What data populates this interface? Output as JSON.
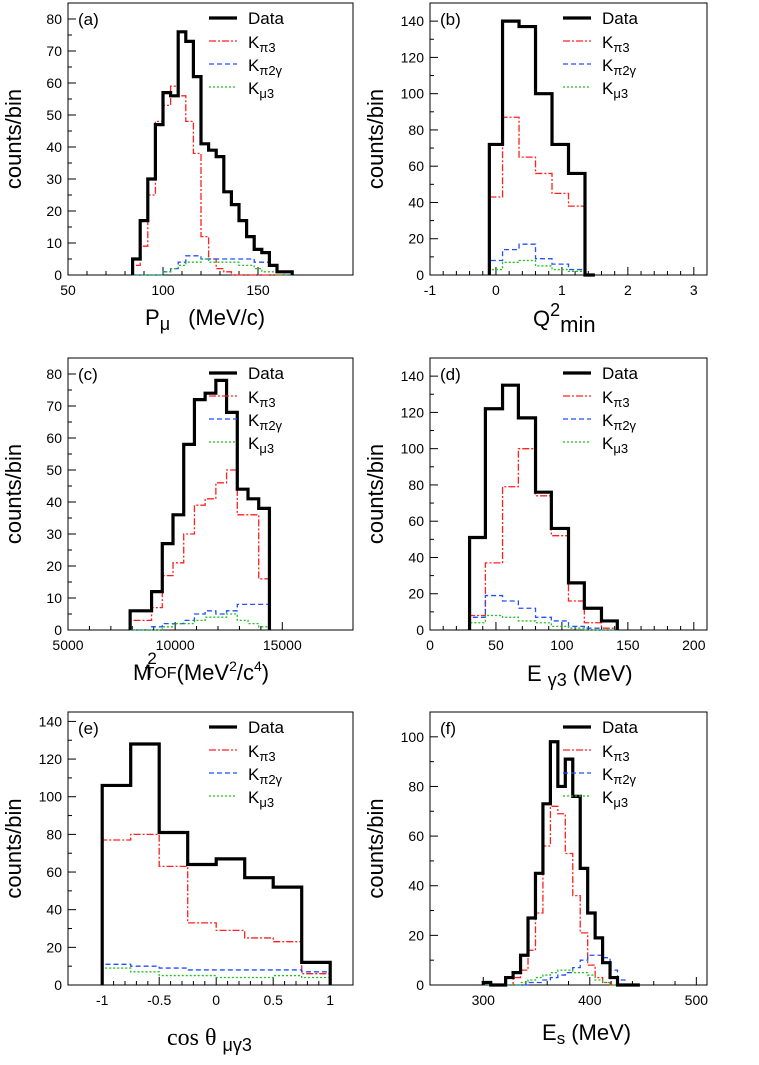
{
  "legend_labels": {
    "data": "Data",
    "kpi3": [
      "K",
      "π3"
    ],
    "kpi2g": [
      "K",
      "π2γ"
    ],
    "kmu3": [
      "K",
      "μ3"
    ]
  },
  "colors": {
    "data": "#000000",
    "kpi3": "#ff2020",
    "kpi2g": "#2050ff",
    "kmu3": "#20c020"
  },
  "chart_data": [
    {
      "type": "line",
      "panel_label": "(a)",
      "xlabel": "Pμ   (MeV/c)",
      "xlabel_parts": [
        "P",
        "μ",
        "(MeV/c)"
      ],
      "ylabel": "counts/bin",
      "xlim": [
        50,
        200
      ],
      "ylim": [
        0,
        85
      ],
      "xticks": [
        50,
        100,
        150
      ],
      "xtick_labels": [
        "50",
        "100",
        "150"
      ],
      "yticks": [
        0,
        10,
        20,
        30,
        40,
        50,
        60,
        70,
        80
      ],
      "ytick_labels": [
        "0",
        "10",
        "20",
        "30",
        "40",
        "50",
        "60",
        "70",
        "80"
      ],
      "legend": "top-right",
      "edges": [
        84,
        88,
        92,
        96,
        100,
        104,
        108,
        112,
        116,
        120,
        124,
        128,
        132,
        136,
        140,
        144,
        148,
        152,
        156,
        160,
        164,
        168
      ],
      "series": [
        {
          "name": "Data",
          "values": [
            5,
            17,
            30,
            47,
            57,
            56,
            76,
            73,
            62,
            41,
            39,
            37,
            26,
            22,
            17,
            12,
            8,
            7,
            3,
            1,
            1
          ]
        },
        {
          "name": "Kπ3",
          "values": [
            3,
            9,
            25,
            48,
            53,
            59,
            56,
            48,
            38,
            12,
            5,
            2,
            1,
            0,
            0,
            0,
            0,
            0,
            0,
            0,
            0
          ]
        },
        {
          "name": "Kπ2γ",
          "values": [
            0,
            0,
            0,
            0,
            1,
            2,
            4,
            6,
            6,
            5,
            5,
            5,
            5,
            5,
            5,
            5,
            4,
            4,
            3,
            1,
            0
          ]
        },
        {
          "name": "Kμ3",
          "values": [
            0,
            0,
            0,
            0,
            1,
            2,
            3,
            4,
            4,
            5,
            4,
            4,
            4,
            4,
            3,
            3,
            2,
            1,
            1,
            0,
            0
          ]
        }
      ]
    },
    {
      "type": "line",
      "panel_label": "(b)",
      "xlabel": "Q2min",
      "xlabel_parts": [
        "Q",
        "2",
        "min"
      ],
      "ylabel": "counts/bin",
      "xlim": [
        -1,
        3.2
      ],
      "ylim": [
        0,
        150
      ],
      "xticks": [
        -1,
        0,
        1,
        2,
        3
      ],
      "xtick_labels": [
        "-1",
        "0",
        "1",
        "2",
        "3"
      ],
      "yticks": [
        0,
        20,
        40,
        60,
        80,
        100,
        120,
        140
      ],
      "ytick_labels": [
        "0",
        "20",
        "40",
        "60",
        "80",
        "100",
        "120",
        "140"
      ],
      "legend": "top-right",
      "edges": [
        -0.1,
        0.1,
        0.35,
        0.6,
        0.85,
        1.1,
        1.35,
        1.5
      ],
      "series": [
        {
          "name": "Data",
          "values": [
            72,
            140,
            137,
            100,
            72,
            56,
            0
          ]
        },
        {
          "name": "Kπ3",
          "values": [
            43,
            87,
            65,
            56,
            45,
            38,
            0
          ]
        },
        {
          "name": "Kπ2γ",
          "values": [
            8,
            14,
            17,
            9,
            6,
            3,
            0
          ]
        },
        {
          "name": "Kμ3",
          "values": [
            3,
            7,
            8,
            5,
            3,
            2,
            0
          ]
        }
      ]
    },
    {
      "type": "line",
      "panel_label": "(c)",
      "xlabel": "M²TOF (MeV²/c⁴)",
      "xlabel_parts": [
        "M",
        "2",
        "TOF",
        "(MeV",
        "2",
        "/c",
        "4",
        ")"
      ],
      "ylabel": "counts/bin",
      "xlim": [
        5000,
        18300
      ],
      "ylim": [
        0,
        85
      ],
      "xticks": [
        5000,
        10000,
        15000
      ],
      "xtick_labels": [
        "5000",
        "10000",
        "15000"
      ],
      "yticks": [
        0,
        10,
        20,
        30,
        40,
        50,
        60,
        70,
        80
      ],
      "ytick_labels": [
        "0",
        "10",
        "20",
        "30",
        "40",
        "50",
        "60",
        "70",
        "80"
      ],
      "legend": "top-right",
      "edges": [
        7900,
        8900,
        9400,
        9900,
        10400,
        10900,
        11400,
        11900,
        12400,
        12900,
        13400,
        13900,
        14400
      ],
      "series": [
        {
          "name": "Data",
          "values": [
            6,
            12,
            27,
            36,
            58,
            72,
            74,
            78,
            68,
            44,
            41,
            38
          ]
        },
        {
          "name": "Kπ3",
          "values": [
            3,
            7,
            17,
            21,
            30,
            39,
            41,
            46,
            50,
            36,
            36,
            16
          ]
        },
        {
          "name": "Kπ2γ",
          "values": [
            0,
            1,
            2,
            2,
            3,
            5,
            6,
            5,
            6,
            8,
            8,
            8
          ]
        },
        {
          "name": "Kμ3",
          "values": [
            0,
            0,
            1,
            2,
            2,
            3,
            4,
            4,
            5,
            3,
            2,
            1
          ]
        }
      ]
    },
    {
      "type": "line",
      "panel_label": "(d)",
      "xlabel": "Eγ3 (MeV)",
      "xlabel_parts": [
        "E",
        "γ3",
        "(MeV)"
      ],
      "ylabel": "counts/bin",
      "xlim": [
        0,
        210
      ],
      "ylim": [
        0,
        150
      ],
      "xticks": [
        0,
        50,
        100,
        150,
        200
      ],
      "xtick_labels": [
        "0",
        "50",
        "100",
        "150",
        "200"
      ],
      "yticks": [
        0,
        20,
        40,
        60,
        80,
        100,
        120,
        140
      ],
      "ytick_labels": [
        "0",
        "20",
        "40",
        "60",
        "80",
        "100",
        "120",
        "140"
      ],
      "legend": "top-right",
      "edges": [
        30,
        42,
        55,
        67,
        80,
        92,
        105,
        117,
        130,
        142
      ],
      "series": [
        {
          "name": "Data",
          "values": [
            51,
            122,
            135,
            117,
            76,
            56,
            26,
            12,
            5
          ]
        },
        {
          "name": "Kπ3",
          "values": [
            8,
            37,
            79,
            100,
            74,
            52,
            16,
            4,
            1
          ]
        },
        {
          "name": "Kπ2γ",
          "values": [
            7,
            19,
            16,
            12,
            7,
            5,
            2,
            1,
            0
          ]
        },
        {
          "name": "Kμ3",
          "values": [
            4,
            8,
            7,
            5,
            4,
            2,
            1,
            0,
            0
          ]
        }
      ]
    },
    {
      "type": "line",
      "panel_label": "(e)",
      "xlabel": "cos θ μγ3",
      "xlabel_parts": [
        "cos θ",
        "μγ3"
      ],
      "ylabel": "counts/bin",
      "xlim": [
        -1.3,
        1.2
      ],
      "ylim": [
        0,
        145
      ],
      "xticks": [
        -1,
        -0.5,
        0,
        0.5,
        1
      ],
      "xtick_labels": [
        "-1",
        "-0.5",
        "0",
        "0.5",
        "1"
      ],
      "yticks": [
        0,
        20,
        40,
        60,
        80,
        100,
        120,
        140
      ],
      "ytick_labels": [
        "0",
        "20",
        "40",
        "60",
        "80",
        "100",
        "120",
        "140"
      ],
      "legend": "top-right",
      "edges": [
        -1,
        -0.75,
        -0.5,
        -0.25,
        0,
        0.25,
        0.5,
        0.75,
        1
      ],
      "series": [
        {
          "name": "Data",
          "values": [
            106,
            128,
            81,
            64,
            67,
            57,
            52,
            12
          ]
        },
        {
          "name": "Kπ3",
          "values": [
            77,
            80,
            63,
            33,
            29,
            25,
            23,
            6
          ]
        },
        {
          "name": "Kπ2γ",
          "values": [
            11,
            10,
            9,
            8,
            8,
            8,
            8,
            7
          ]
        },
        {
          "name": "Kμ3",
          "values": [
            9,
            7,
            5,
            5,
            4,
            4,
            5,
            4
          ]
        }
      ]
    },
    {
      "type": "line",
      "panel_label": "(f)",
      "xlabel": "Es (MeV)",
      "xlabel_parts": [
        "E",
        "s",
        "(MeV)"
      ],
      "ylabel": "counts/bin",
      "xlim": [
        250,
        510
      ],
      "ylim": [
        0,
        110
      ],
      "xticks": [
        300,
        400,
        500
      ],
      "xtick_labels": [
        "300",
        "400",
        "500"
      ],
      "yticks": [
        0,
        20,
        40,
        60,
        80,
        100
      ],
      "ytick_labels": [
        "0",
        "20",
        "40",
        "60",
        "80",
        "100"
      ],
      "legend": "top-right",
      "edges": [
        300,
        307,
        314,
        321,
        328,
        335,
        342,
        349,
        356,
        363,
        370,
        377,
        384,
        391,
        398,
        405,
        412,
        419,
        426,
        433,
        440,
        447
      ],
      "series": [
        {
          "name": "Data",
          "values": [
            1,
            0,
            0,
            3,
            5,
            12,
            27,
            45,
            73,
            98,
            80,
            91,
            76,
            47,
            29,
            19,
            9,
            3,
            0,
            0,
            0
          ]
        },
        {
          "name": "Kπ3",
          "values": [
            0,
            0,
            0,
            0,
            3,
            6,
            14,
            29,
            56,
            72,
            69,
            53,
            36,
            21,
            8,
            3,
            1,
            0,
            0,
            0,
            0
          ]
        },
        {
          "name": "Kπ2γ",
          "values": [
            0,
            0,
            0,
            0,
            0,
            0,
            1,
            1,
            2,
            3,
            4,
            5,
            7,
            10,
            12,
            12,
            11,
            6,
            2,
            0,
            0
          ]
        },
        {
          "name": "Kμ3",
          "values": [
            0,
            0,
            0,
            0,
            0,
            1,
            2,
            3,
            4,
            5,
            6,
            6,
            5,
            5,
            4,
            2,
            1,
            0,
            0,
            0,
            0
          ]
        }
      ]
    }
  ]
}
